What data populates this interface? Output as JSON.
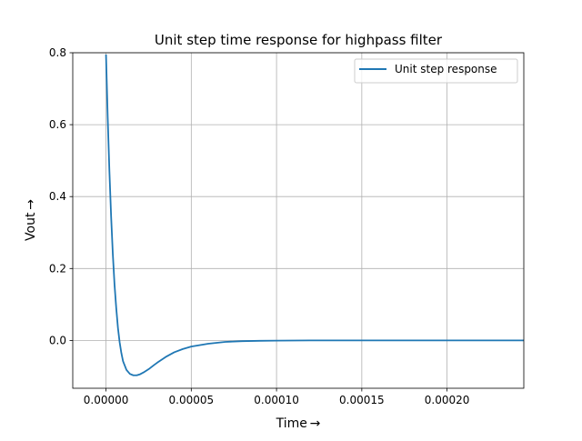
{
  "chart_data": {
    "type": "line",
    "title": "Unit step time response for highpass filter",
    "xlabel": "Time →",
    "ylabel": "Vout →",
    "xlim": [
      -1.95e-05,
      0.000245
    ],
    "ylim": [
      -0.133,
      0.8
    ],
    "grid": true,
    "legend_position": "top-right",
    "x_ticks": [
      0.0,
      5e-05,
      0.0001,
      0.00015,
      0.0002
    ],
    "x_tick_labels": [
      "0.00000",
      "0.00005",
      "0.00010",
      "0.00015",
      "0.00020"
    ],
    "y_ticks": [
      0.0,
      0.2,
      0.4,
      0.6,
      0.8
    ],
    "y_tick_labels": [
      "0.0",
      "0.2",
      "0.4",
      "0.6",
      "0.8"
    ],
    "series": [
      {
        "name": "Unit step response",
        "color": "#1f77b4",
        "x": [
          0.0,
          1e-06,
          2e-06,
          3e-06,
          4e-06,
          5e-06,
          6e-06,
          7e-06,
          8e-06,
          9e-06,
          1e-05,
          1.2e-05,
          1.4e-05,
          1.6e-05,
          1.8e-05,
          2e-05,
          2.2e-05,
          2.5e-05,
          2.8e-05,
          3e-05,
          3.5e-05,
          4e-05,
          4.5e-05,
          5e-05,
          6e-05,
          7e-05,
          8e-05,
          9e-05,
          0.0001,
          0.00012,
          0.00015,
          0.0002,
          0.000245
        ],
        "y": [
          0.795,
          0.62,
          0.47,
          0.345,
          0.24,
          0.155,
          0.09,
          0.035,
          -0.005,
          -0.035,
          -0.058,
          -0.082,
          -0.093,
          -0.097,
          -0.097,
          -0.094,
          -0.089,
          -0.08,
          -0.069,
          -0.062,
          -0.046,
          -0.033,
          -0.024,
          -0.017,
          -0.009,
          -0.004,
          -0.002,
          -0.001,
          -0.0005,
          0.0,
          0.0,
          0.0,
          0.0
        ]
      }
    ]
  }
}
